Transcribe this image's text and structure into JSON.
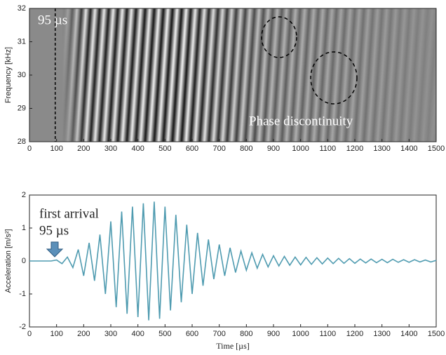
{
  "chart_data": [
    {
      "type": "spectrogram",
      "ylabel": "Frequency [kHz]",
      "xlim": [
        0,
        1500
      ],
      "xticks": [
        0,
        100,
        200,
        300,
        400,
        500,
        600,
        700,
        800,
        900,
        1000,
        1100,
        1200,
        1300,
        1400,
        1500
      ],
      "ylim": [
        28,
        32
      ],
      "yticks": [
        28,
        29,
        30,
        31,
        32
      ],
      "marker_x": 95,
      "marker_label": "95 µs",
      "annotation": "Phase discontinuity"
    },
    {
      "type": "line",
      "ylabel": "Acceleration [m/s²]",
      "xlabel": "Time [µs]",
      "annotation": [
        "first arrival",
        "95 µs"
      ],
      "xlim": [
        0,
        1500
      ],
      "xticks": [
        0,
        100,
        200,
        300,
        400,
        500,
        600,
        700,
        800,
        900,
        1000,
        1100,
        1200,
        1300,
        1400,
        1500
      ],
      "ylim": [
        -2,
        2
      ],
      "yticks": [
        -2,
        -1,
        0,
        1,
        2
      ],
      "x": [
        0,
        20,
        40,
        60,
        80,
        100,
        120,
        140,
        160,
        180,
        200,
        220,
        240,
        260,
        280,
        300,
        320,
        340,
        360,
        380,
        400,
        420,
        440,
        460,
        480,
        500,
        520,
        540,
        560,
        580,
        600,
        620,
        640,
        660,
        680,
        700,
        720,
        740,
        760,
        780,
        800,
        820,
        840,
        860,
        880,
        900,
        920,
        940,
        960,
        980,
        1000,
        1020,
        1040,
        1060,
        1080,
        1100,
        1120,
        1140,
        1160,
        1180,
        1200,
        1220,
        1240,
        1260,
        1280,
        1300,
        1320,
        1340,
        1360,
        1380,
        1400,
        1420,
        1440,
        1460,
        1480,
        1500
      ],
      "series": [
        {
          "color": "#4f9bb0",
          "values": [
            0,
            0,
            0,
            0,
            0,
            0.03,
            -0.08,
            0.12,
            -0.2,
            0.35,
            -0.45,
            0.55,
            -0.6,
            0.8,
            -1.0,
            1.2,
            -1.4,
            1.5,
            -1.6,
            1.65,
            -1.7,
            1.75,
            -1.8,
            1.8,
            -1.75,
            1.65,
            -1.5,
            1.4,
            -1.25,
            1.1,
            -1.0,
            0.85,
            -0.75,
            0.65,
            -0.55,
            0.5,
            -0.45,
            0.4,
            -0.35,
            0.3,
            -0.28,
            0.25,
            -0.22,
            0.2,
            -0.18,
            0.16,
            -0.15,
            0.14,
            -0.13,
            0.12,
            -0.12,
            0.11,
            -0.1,
            0.1,
            -0.09,
            0.09,
            -0.08,
            0.08,
            -0.07,
            0.07,
            -0.07,
            0.06,
            -0.06,
            0.06,
            -0.05,
            0.05,
            -0.05,
            0.05,
            -0.04,
            0.04,
            -0.04,
            0.04,
            -0.03,
            0.03,
            -0.03,
            0.02
          ]
        }
      ]
    }
  ]
}
